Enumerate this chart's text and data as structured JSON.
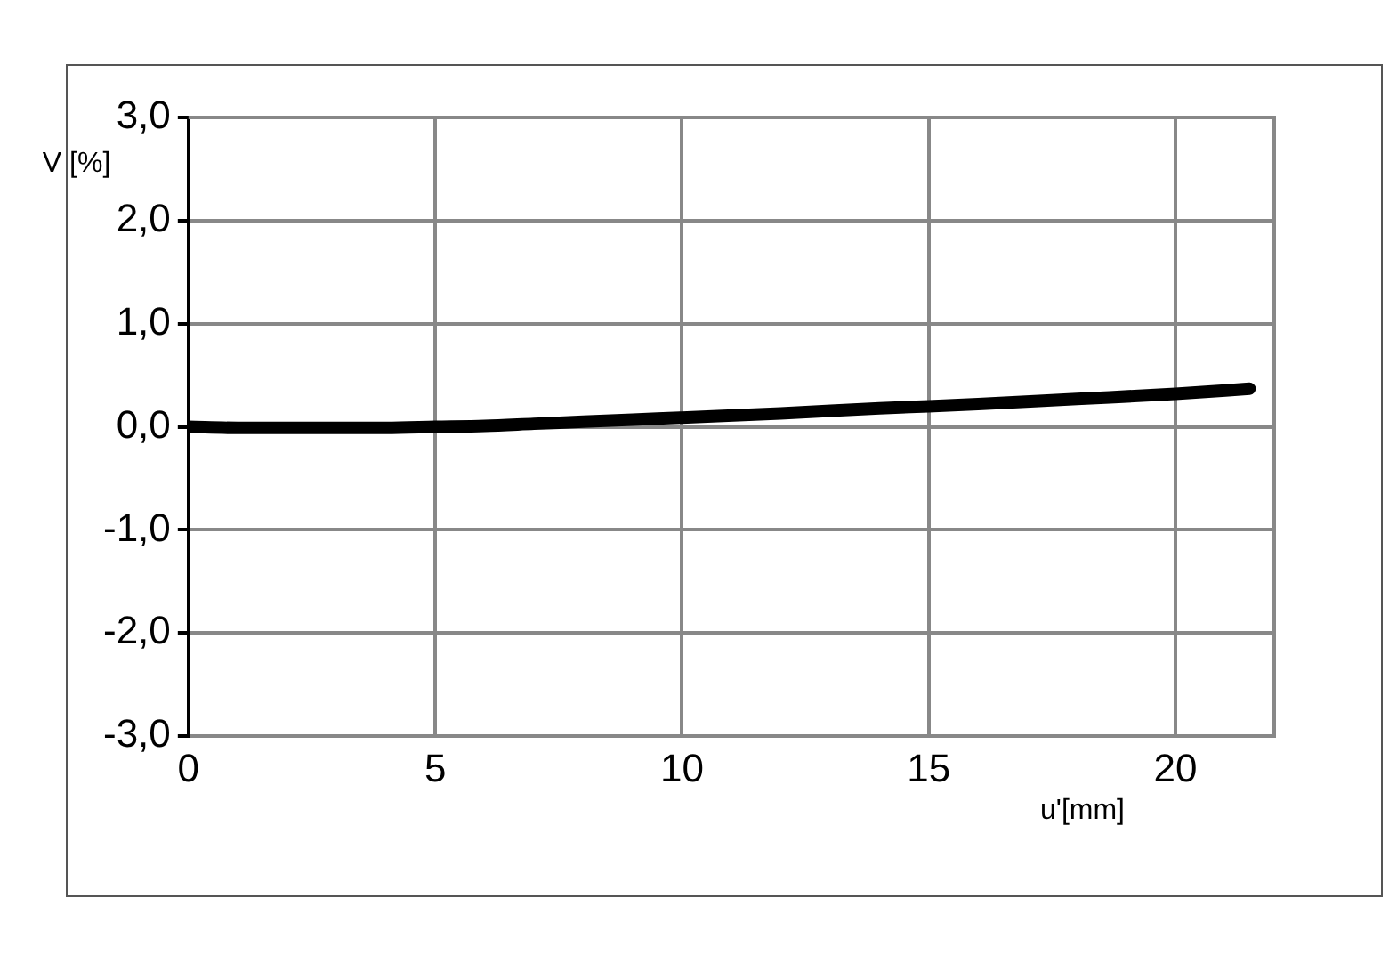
{
  "chart_data": {
    "type": "line",
    "xlabel": "u'[mm]",
    "ylabel": "V [%]",
    "x": [
      0,
      1,
      2,
      3,
      4,
      5,
      6,
      7,
      8,
      9,
      10,
      12,
      14,
      16,
      18,
      20,
      21.5
    ],
    "series": [
      {
        "color": "#000000",
        "values": [
          0,
          -0.01,
          -0.01,
          -0.01,
          -0.01,
          0,
          0.01,
          0.03,
          0.05,
          0.07,
          0.09,
          0.13,
          0.18,
          0.22,
          0.27,
          0.32,
          0.37
        ]
      }
    ],
    "xlim": [
      0,
      22
    ],
    "xticks": [
      0,
      5,
      10,
      15,
      20
    ],
    "ylim": [
      -3,
      3
    ],
    "yticks": [
      {
        "value": -3,
        "label": "-3,0"
      },
      {
        "value": -2,
        "label": "-2,0"
      },
      {
        "value": -1,
        "label": "-1,0"
      },
      {
        "value": 0,
        "label": "0,0"
      },
      {
        "value": 1,
        "label": "1,0"
      },
      {
        "value": 2,
        "label": "2,0"
      },
      {
        "value": 3,
        "label": "3,0"
      }
    ],
    "grid": true,
    "legend": false,
    "marker": "none",
    "line_style": "solid"
  }
}
